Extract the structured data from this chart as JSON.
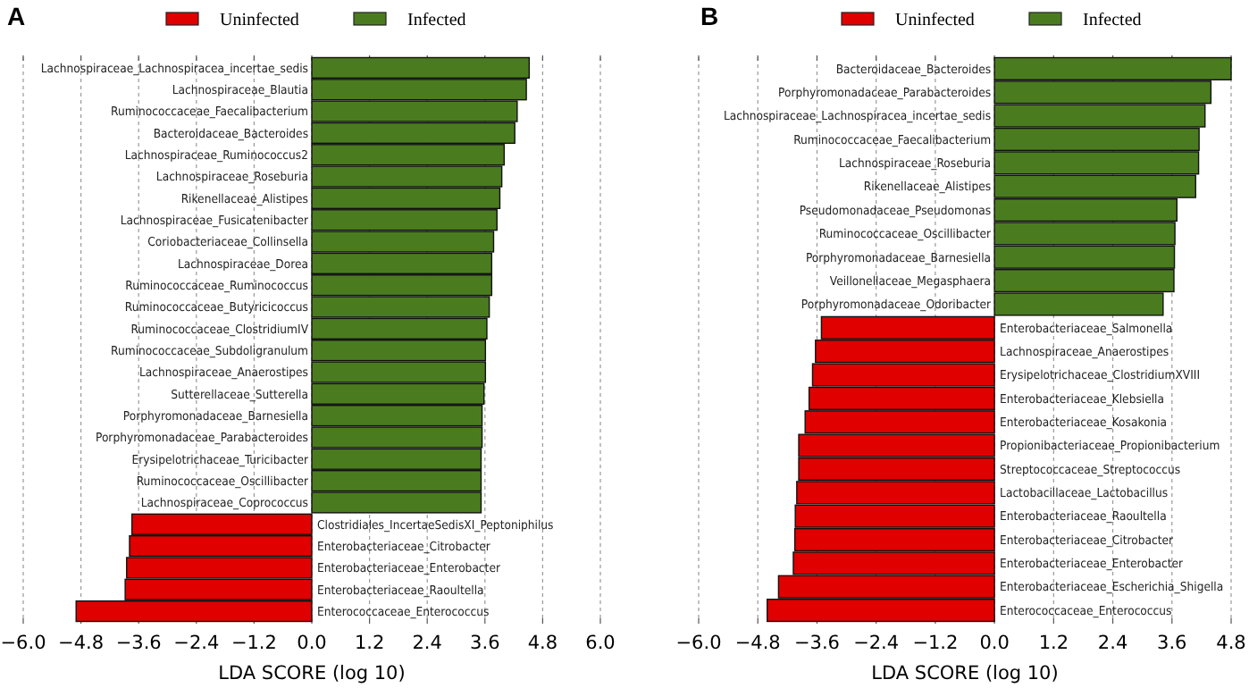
{
  "chart_data": [
    {
      "type": "bar",
      "title": "A",
      "orientation": "horizontal",
      "xlabel": "LDA SCORE (log 10)",
      "legend": "top",
      "grid": "x",
      "categories": [
        "Lachnospiraceae_Lachnospiracea_incertae_sedis",
        "Lachnospiraceae_Blautia",
        "Ruminococcaceae_Faecalibacterium",
        "Bacteroidaceae_Bacteroides",
        "Lachnospiraceae_Ruminococcus2",
        "Lachnospiraceae_Roseburia",
        "Rikenellaceae_Alistipes",
        "Lachnospiraceae_Fusicatenibacter",
        "Coriobacteriaceae_Collinsella",
        "Lachnospiraceae_Dorea",
        "Ruminococcaceae_Ruminococcus",
        "Ruminococcaceae_Butyricicoccus",
        "Ruminococcaceae_ClostridiumIV",
        "Ruminococcaceae_Subdoligranulum",
        "Lachnospiraceae_Anaerostipes",
        "Sutterellaceae_Sutterella",
        "Porphyromonadaceae_Barnesiella",
        "Porphyromonadaceae_Parabacteroides",
        "Erysipelotrichaceae_Turicibacter",
        "Ruminococcaceae_Oscillibacter",
        "Lachnospiraceae_Coprococcus",
        "Clostridiales_IncertaeSedisXI_Peptoniphilus",
        "Enterobacteriaceae_Citrobacter",
        "Enterobacteriaceae_Enterobacter",
        "Enterobacteriaceae_Raoultella",
        "Enterococcaceae_Enterococcus"
      ],
      "series": [
        {
          "name": "Uninfected",
          "color": "#e00000",
          "values": [
            null,
            null,
            null,
            null,
            null,
            null,
            null,
            null,
            null,
            null,
            null,
            null,
            null,
            null,
            null,
            null,
            null,
            null,
            null,
            null,
            null,
            -3.74,
            -3.79,
            -3.85,
            -3.88,
            -4.9
          ]
        },
        {
          "name": "Infected",
          "color": "#4a7c1f",
          "values": [
            4.52,
            4.46,
            4.27,
            4.22,
            4.0,
            3.95,
            3.91,
            3.85,
            3.78,
            3.74,
            3.74,
            3.69,
            3.64,
            3.61,
            3.61,
            3.58,
            3.54,
            3.54,
            3.52,
            3.52,
            3.52,
            null,
            null,
            null,
            null,
            null
          ]
        }
      ],
      "xlim": [
        -6,
        6
      ],
      "xticks": [
        {
          "value": -6,
          "label": "−6.0"
        },
        {
          "value": -4.8,
          "label": "−4.8"
        },
        {
          "value": -3.6,
          "label": "−3.6"
        },
        {
          "value": -2.4,
          "label": "−2.4"
        },
        {
          "value": -1.2,
          "label": "−1.2"
        },
        {
          "value": 0,
          "label": "0.0"
        },
        {
          "value": 1.2,
          "label": "1.2"
        },
        {
          "value": 2.4,
          "label": "2.4"
        },
        {
          "value": 3.6,
          "label": "3.6"
        },
        {
          "value": 4.8,
          "label": "4.8"
        },
        {
          "value": 6,
          "label": "6.0"
        }
      ]
    },
    {
      "type": "bar",
      "title": "B",
      "orientation": "horizontal",
      "xlabel": "LDA SCORE (log 10)",
      "legend": "top",
      "grid": "x",
      "categories": [
        "Bacteroidaceae_Bacteroides",
        "Porphyromonadaceae_Parabacteroides",
        "Lachnospiraceae_Lachnospiracea_incertae_sedis",
        "Ruminococcaceae_Faecalibacterium",
        "Lachnospiraceae_Roseburia",
        "Rikenellaceae_Alistipes",
        "Pseudomonadaceae_Pseudomonas",
        "Ruminococcaceae_Oscillibacter",
        "Porphyromonadaceae_Barnesiella",
        "Veillonellaceae_Megasphaera",
        "Porphyromonadaceae_Odoribacter",
        "Enterobacteriaceae_Salmonella",
        "Lachnospiraceae_Anaerostipes",
        "Erysipelotrichaceae_ClostridiumXVIII",
        "Enterobacteriaceae_Klebsiella",
        "Enterobacteriaceae_Kosakonia",
        "Propionibacteriaceae_Propionibacterium",
        "Streptococcaceae_Streptococcus",
        "Lactobacillaceae_Lactobacillus",
        "Enterobacteriaceae_Raoultella",
        "Enterobacteriaceae_Citrobacter",
        "Enterobacteriaceae_Enterobacter",
        "Enterobacteriaceae_Escherichia_Shigella",
        "Enterococcaceae_Enterococcus"
      ],
      "series": [
        {
          "name": "Uninfected",
          "color": "#e00000",
          "values": [
            null,
            null,
            null,
            null,
            null,
            null,
            null,
            null,
            null,
            null,
            null,
            -3.51,
            -3.63,
            -3.69,
            -3.76,
            -3.84,
            -3.97,
            -3.97,
            -4.01,
            -4.04,
            -4.05,
            -4.08,
            -4.38,
            -4.61
          ]
        },
        {
          "name": "Infected",
          "color": "#4a7c1f",
          "values": [
            4.8,
            4.39,
            4.27,
            4.15,
            4.14,
            4.08,
            3.7,
            3.66,
            3.65,
            3.64,
            3.42,
            null,
            null,
            null,
            null,
            null,
            null,
            null,
            null,
            null,
            null,
            null,
            null,
            null
          ]
        }
      ],
      "xlim": [
        -6,
        4.8
      ],
      "xticks": [
        {
          "value": -6,
          "label": "−6.0"
        },
        {
          "value": -4.8,
          "label": "−4.8"
        },
        {
          "value": -3.6,
          "label": "−3.6"
        },
        {
          "value": -2.4,
          "label": "−2.4"
        },
        {
          "value": -1.2,
          "label": "−1.2"
        },
        {
          "value": 0,
          "label": "0.0"
        },
        {
          "value": 1.2,
          "label": "1.2"
        },
        {
          "value": 2.4,
          "label": "2.4"
        },
        {
          "value": 3.6,
          "label": "3.6"
        },
        {
          "value": 4.8,
          "label": "4.8"
        }
      ]
    }
  ]
}
